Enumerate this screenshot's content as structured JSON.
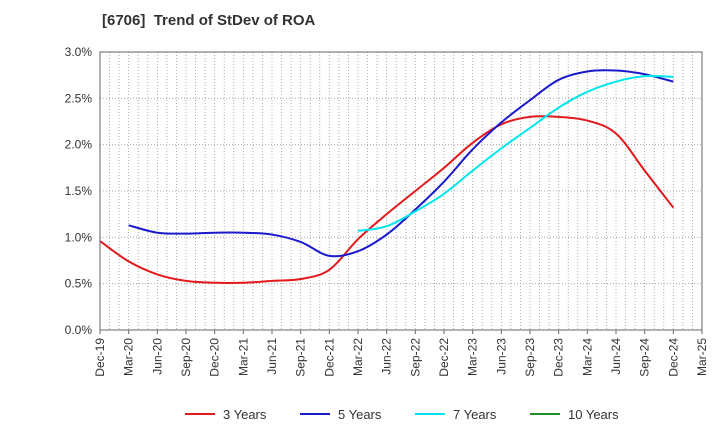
{
  "chart_data": {
    "type": "line",
    "title": "[6706]  Trend of StDev of ROA",
    "y_ticks": [
      "0.0%",
      "0.5%",
      "1.0%",
      "1.5%",
      "2.0%",
      "2.5%",
      "3.0%"
    ],
    "ylim": [
      0,
      3.0
    ],
    "x_ticks": [
      "Dec-19",
      "Mar-20",
      "Jun-20",
      "Sep-20",
      "Dec-20",
      "Mar-21",
      "Jun-21",
      "Sep-21",
      "Dec-21",
      "Mar-22",
      "Jun-22",
      "Sep-22",
      "Dec-22",
      "Mar-23",
      "Jun-23",
      "Sep-23",
      "Dec-23",
      "Mar-24",
      "Jun-24",
      "Sep-24",
      "Dec-24",
      "Mar-25"
    ],
    "grid": true,
    "legend_position": "bottom",
    "series": [
      {
        "name": "3 Years",
        "color": "#e31a1c",
        "values": [
          0.96,
          0.74,
          0.6,
          0.53,
          0.51,
          0.51,
          0.53,
          0.55,
          0.65,
          0.98,
          1.25,
          1.5,
          1.75,
          2.02,
          2.22,
          2.3,
          2.3,
          2.26,
          2.12,
          1.72,
          1.32,
          null
        ]
      },
      {
        "name": "5 Years",
        "color": "#1a1acc",
        "values": [
          null,
          1.13,
          1.05,
          1.04,
          1.05,
          1.05,
          1.03,
          0.95,
          0.8,
          0.85,
          1.03,
          1.3,
          1.6,
          1.95,
          2.24,
          2.48,
          2.7,
          2.79,
          2.8,
          2.76,
          2.68,
          null
        ]
      },
      {
        "name": "7 Years",
        "color": "#00e5ee",
        "values": [
          null,
          null,
          null,
          null,
          null,
          null,
          null,
          null,
          null,
          1.07,
          1.12,
          1.28,
          1.47,
          1.72,
          1.96,
          2.18,
          2.4,
          2.57,
          2.68,
          2.74,
          2.73,
          null
        ]
      },
      {
        "name": "10 Years",
        "color": "#228b22",
        "values": [
          null,
          null,
          null,
          null,
          null,
          null,
          null,
          null,
          null,
          null,
          null,
          null,
          null,
          null,
          null,
          null,
          null,
          null,
          null,
          null,
          null,
          null
        ]
      }
    ]
  }
}
